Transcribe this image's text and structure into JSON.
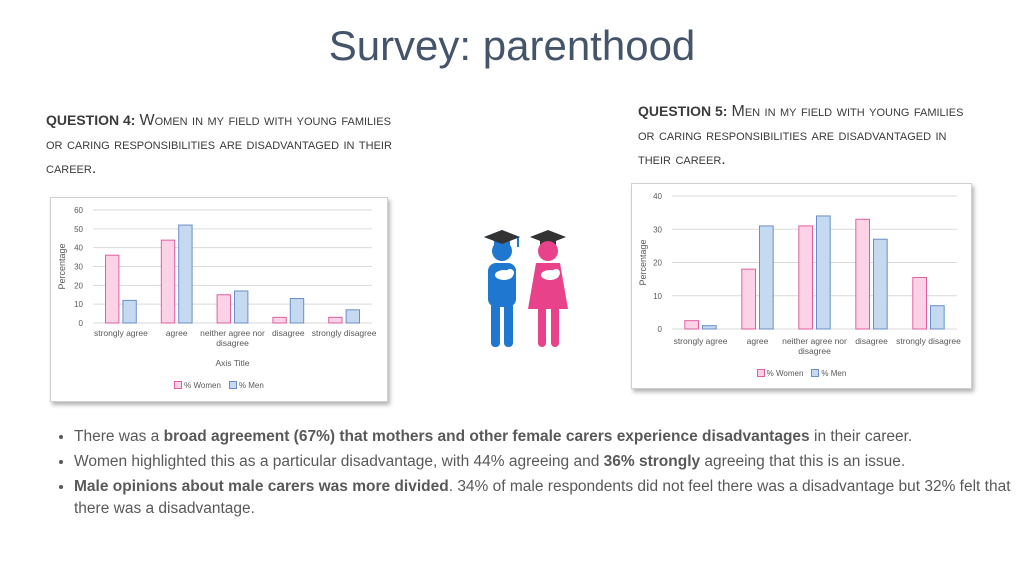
{
  "title": "Survey: parenthood",
  "questions": [
    {
      "label": "QUESTION 4:",
      "text": "Women in my field with young families or caring responsibilities are disadvantaged in their career."
    },
    {
      "label": "QUESTION 5:",
      "text": "Men in my field with young families or caring responsibilities are disadvantaged in their career."
    }
  ],
  "chart_data": [
    {
      "type": "bar",
      "ylabel": "Percentage",
      "xlabel": "Axis Title",
      "categories": [
        "strongly agree",
        "agree",
        "neither agree nor disagree",
        "disagree",
        "strongly disagree"
      ],
      "series": [
        {
          "name": "% Women",
          "color": "#fcd3e6",
          "edge_color": "#e05fa0",
          "values": [
            36,
            44,
            15,
            3,
            3
          ]
        },
        {
          "name": "% Men",
          "color": "#c5d9f1",
          "edge_color": "#6b8fc4",
          "values": [
            12,
            52,
            17,
            13,
            7
          ]
        }
      ],
      "ylim": [
        0,
        60
      ],
      "yticks": [
        0,
        10,
        20,
        30,
        40,
        50,
        60
      ],
      "grid": true,
      "legend": "bottom"
    },
    {
      "type": "bar",
      "ylabel": "Percentage",
      "categories": [
        "strongly agree",
        "agree",
        "neither agree nor disagree",
        "disagree",
        "strongly disagree"
      ],
      "series": [
        {
          "name": "% Women",
          "color": "#fcd3e6",
          "edge_color": "#e05fa0",
          "values": [
            2.5,
            18,
            31,
            33,
            15.5
          ]
        },
        {
          "name": "% Men",
          "color": "#c5d9f1",
          "edge_color": "#6b8fc4",
          "values": [
            1,
            31,
            34,
            27,
            7
          ]
        }
      ],
      "ylim": [
        0,
        40
      ],
      "yticks": [
        0,
        10,
        20,
        30,
        40
      ],
      "grid": true,
      "legend": "bottom"
    }
  ],
  "bullets": [
    [
      {
        "text": "There was a ",
        "bold": false
      },
      {
        "text": "broad agreement (67%) that mothers and other female carers experience disadvantages",
        "bold": true
      },
      {
        "text": " in their career.",
        "bold": false
      }
    ],
    [
      {
        "text": "Women highlighted this as a particular disadvantage, with 44% agreeing and ",
        "bold": false
      },
      {
        "text": "36% strongly",
        "bold": true
      },
      {
        "text": " agreeing that this is an issue.",
        "bold": false
      }
    ],
    [
      {
        "text": "Male opinions about male carers was more divided",
        "bold": true
      },
      {
        "text": ". 34% of male respondents did not feel there was a disadvantage but 32% felt that there was a disadvantage.",
        "bold": false
      }
    ]
  ]
}
